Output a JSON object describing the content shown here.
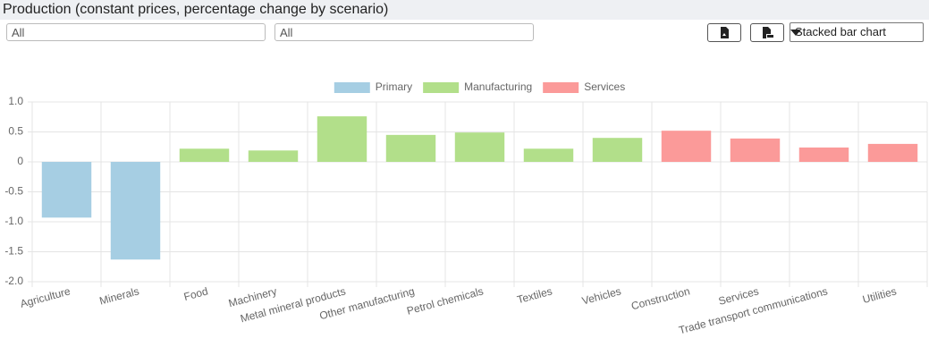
{
  "header": {
    "title": "Production (constant prices, percentage change by scenario)"
  },
  "controls": {
    "filters": [
      "All",
      "All"
    ],
    "chart_type": "Stacked bar chart"
  },
  "chart_data": {
    "type": "bar",
    "stacked": true,
    "categories": [
      "Agriculture",
      "Minerals",
      "Food",
      "Machinery",
      "Metal mineral products",
      "Other manufacturing",
      "Petrol chemicals",
      "Textiles",
      "Vehicles",
      "Construction",
      "Services",
      "Trade transport communications",
      "Utilities"
    ],
    "series": [
      {
        "name": "Primary",
        "color": "#a6cee3",
        "values": [
          -0.93,
          -1.63,
          null,
          null,
          null,
          null,
          null,
          null,
          null,
          null,
          null,
          null,
          null
        ]
      },
      {
        "name": "Manufacturing",
        "color": "#b2df8a",
        "values": [
          null,
          null,
          0.22,
          0.19,
          0.76,
          0.45,
          0.49,
          0.22,
          0.4,
          null,
          null,
          null,
          null
        ]
      },
      {
        "name": "Services",
        "color": "#fb9a99",
        "values": [
          null,
          null,
          null,
          null,
          null,
          null,
          null,
          null,
          null,
          0.52,
          0.39,
          0.24,
          0.3
        ]
      }
    ],
    "ylim": [
      -2,
      1
    ],
    "yticks": [
      {
        "value": 1,
        "label": "1.0"
      },
      0.5,
      0,
      -0.5,
      {
        "value": -1,
        "label": "-1.0"
      },
      -1.5,
      {
        "value": -2,
        "label": "-2.0"
      }
    ],
    "grid": true,
    "legend": "top"
  }
}
